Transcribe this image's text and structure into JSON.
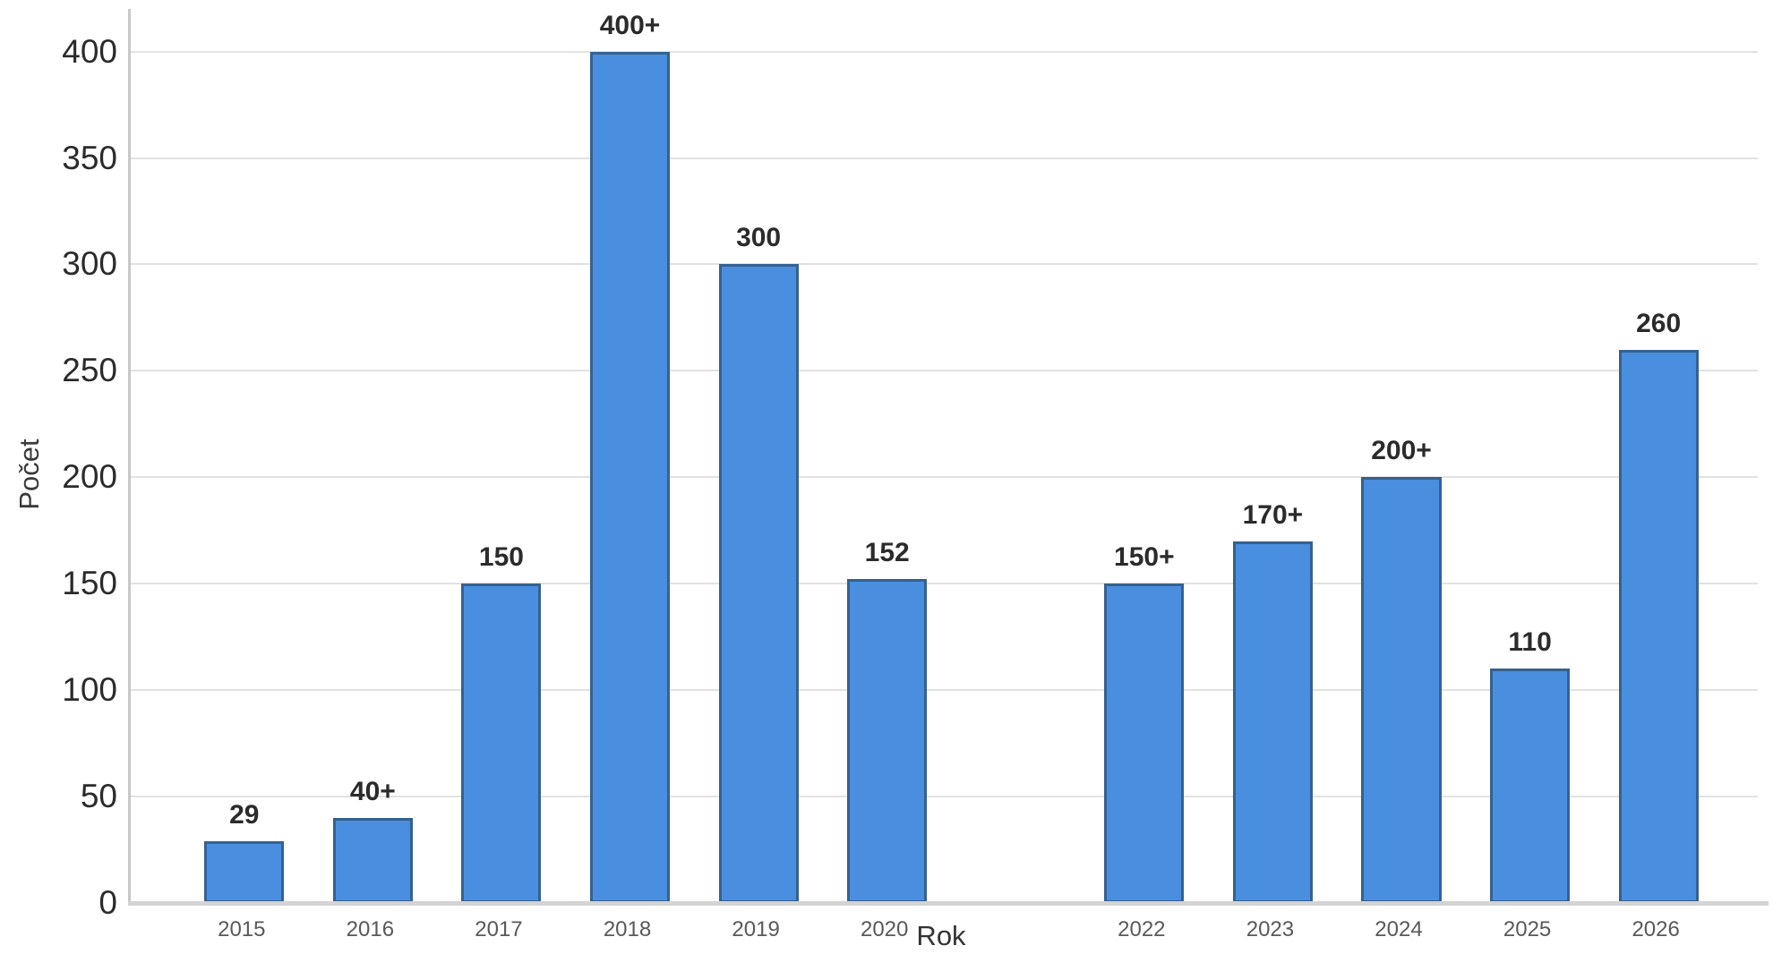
{
  "chart_data": {
    "type": "bar",
    "title": "",
    "xlabel": "Rok",
    "ylabel": "Počet",
    "categories": [
      "2015",
      "2016",
      "2017",
      "2018",
      "2019",
      "2020",
      "2022",
      "2023",
      "2024",
      "2025",
      "2026"
    ],
    "values": [
      29,
      40,
      150,
      400,
      300,
      152,
      150,
      170,
      200,
      110,
      260
    ],
    "bar_labels": [
      "29",
      "40+",
      "150",
      "400+",
      "300",
      "152",
      "150+",
      "170+",
      "200+",
      "110",
      "260"
    ],
    "yticks": [
      0,
      50,
      100,
      150,
      200,
      250,
      300,
      350,
      400
    ],
    "ylim": [
      0,
      420
    ],
    "grid": "horizontal",
    "legend": "none",
    "missing_category": "2021",
    "gap_slot_index": 6,
    "total_slots": 12,
    "bar_fill_color": "#4a8ee0",
    "bar_border_color": "#35618f",
    "gridline_color": "#e2e2e2",
    "axis_line_color": "#d4d4d4"
  }
}
